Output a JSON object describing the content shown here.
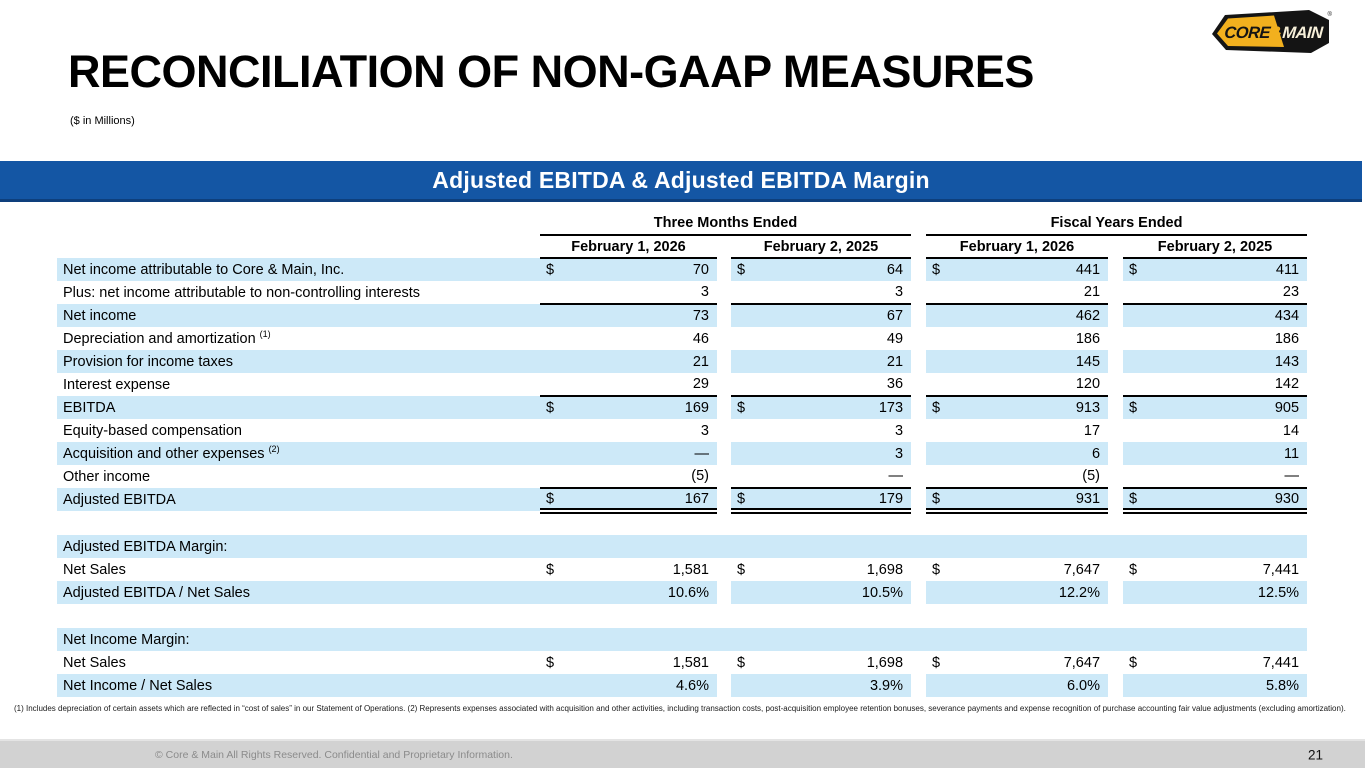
{
  "colors": {
    "accent_blue": "#1456A4",
    "row_highlight_blue": "#CDE9F8",
    "footer_grey": "#D2D2D2",
    "logo_gold": "#F2B01E",
    "banner_text": "#FFFFFF"
  },
  "header": {
    "title": "RECONCILIATION OF NON-GAAP MEASURES",
    "units_note": "($ in Millions)",
    "logo": {
      "core": "CORE",
      "amp": "&",
      "main": "MAIN",
      "registered": "®"
    }
  },
  "banner": {
    "title": "Adjusted EBITDA & Adjusted EBITDA Margin"
  },
  "table": {
    "col_groups": [
      {
        "label": "Three Months Ended",
        "cols": [
          "February 1, 2026",
          "February 2, 2025"
        ]
      },
      {
        "label": "Fiscal Years Ended",
        "cols": [
          "February 1, 2026",
          "February 2, 2025"
        ]
      }
    ],
    "rows": [
      {
        "label": "Net income attributable to Core & Main, Inc.",
        "sup": "",
        "dollar": true,
        "shaded": true,
        "values": [
          "70",
          "64",
          "441",
          "411"
        ]
      },
      {
        "label": "Plus: net income attributable to non-controlling interests",
        "sup": "",
        "dollar": false,
        "shaded": false,
        "border": true,
        "values": [
          "3",
          "3",
          "21",
          "23"
        ]
      },
      {
        "label": "Net income",
        "sup": "",
        "dollar": false,
        "shaded": true,
        "values": [
          "73",
          "67",
          "462",
          "434"
        ]
      },
      {
        "label": "Depreciation and amortization",
        "sup": "(1)",
        "dollar": false,
        "shaded": false,
        "values": [
          "46",
          "49",
          "186",
          "186"
        ]
      },
      {
        "label": "Provision for income taxes",
        "sup": "",
        "dollar": false,
        "shaded": true,
        "values": [
          "21",
          "21",
          "145",
          "143"
        ]
      },
      {
        "label": "Interest expense",
        "sup": "",
        "dollar": false,
        "shaded": false,
        "border": true,
        "values": [
          "29",
          "36",
          "120",
          "142"
        ]
      },
      {
        "label": "EBITDA",
        "sup": "",
        "dollar": true,
        "shaded": true,
        "values": [
          "169",
          "173",
          "913",
          "905"
        ]
      },
      {
        "label": "Equity-based compensation",
        "sup": "",
        "dollar": false,
        "shaded": false,
        "values": [
          "3",
          "3",
          "17",
          "14"
        ]
      },
      {
        "label": "Acquisition and other expenses",
        "sup": "(2)",
        "dollar": false,
        "shaded": true,
        "values": [
          "—",
          "3",
          "6",
          "11"
        ]
      },
      {
        "label": "Other income",
        "sup": "",
        "dollar": false,
        "shaded": false,
        "border": true,
        "values": [
          "(5)",
          "—",
          "(5)",
          "—"
        ]
      },
      {
        "label": "Adjusted EBITDA",
        "sup": "",
        "dollar": true,
        "shaded": true,
        "double": true,
        "values": [
          "167",
          "179",
          "931",
          "930"
        ]
      },
      {
        "spacer": true
      },
      {
        "label": "Adjusted EBITDA Margin:",
        "section": true
      },
      {
        "label": "Net Sales",
        "sup": "",
        "dollar": true,
        "shaded": false,
        "values": [
          "1,581",
          "1,698",
          "7,647",
          "7,441"
        ]
      },
      {
        "label": "Adjusted EBITDA / Net Sales",
        "sup": "",
        "dollar": false,
        "shaded": true,
        "values": [
          "10.6%",
          "10.5%",
          "12.2%",
          "12.5%"
        ]
      },
      {
        "spacer": true
      },
      {
        "label": "Net Income Margin:",
        "section": true
      },
      {
        "label": "Net Sales",
        "sup": "",
        "dollar": true,
        "shaded": false,
        "values": [
          "1,581",
          "1,698",
          "7,647",
          "7,441"
        ]
      },
      {
        "label": "Net Income / Net Sales",
        "sup": "",
        "dollar": false,
        "shaded": true,
        "values": [
          "4.6%",
          "3.9%",
          "6.0%",
          "5.8%"
        ]
      }
    ]
  },
  "footnotes": {
    "text": "(1) Includes depreciation of certain assets which are reflected in “cost of sales” in our Statement of Operations. (2) Represents expenses associated with acquisition and other activities, including transaction costs, post-acquisition employee retention bonuses, severance payments and expense recognition of purchase accounting fair value adjustments (excluding amortization)."
  },
  "footer": {
    "copyright": "© Core & Main  All Rights Reserved. Confidential and Proprietary Information.",
    "page_number": "21"
  }
}
